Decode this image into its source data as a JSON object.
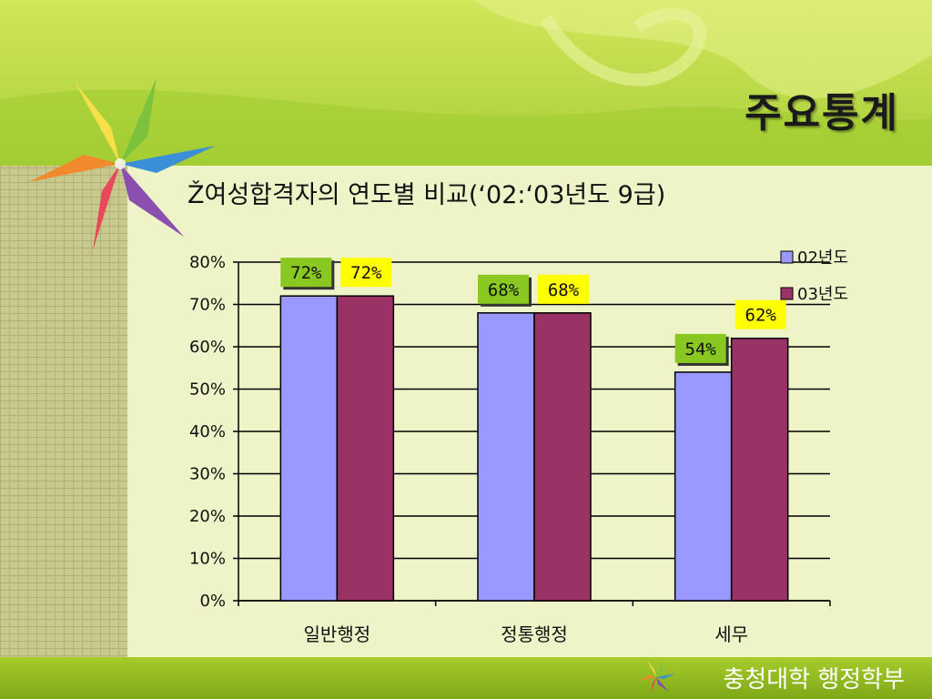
{
  "slide": {
    "title": "주요통계",
    "subtitle": "Ž여성합격자의 연도별 비교(‘02:‘03년도  9급)",
    "footer": "충청대학 행정학부",
    "colors": {
      "background_green": "#b8d94a",
      "panel": "#eef3c8",
      "footer_bar": "#8fb51e"
    }
  },
  "chart_data": {
    "type": "bar",
    "categories": [
      "일반행정",
      "정통행정",
      "세무"
    ],
    "series": [
      {
        "name": "02년도",
        "values": [
          72,
          68,
          54
        ],
        "color": "#9999ff",
        "label_bg": "#88c820"
      },
      {
        "name": "03년도",
        "values": [
          72,
          68,
          62
        ],
        "color": "#993366",
        "label_bg": "#ffff00"
      }
    ],
    "ylim": [
      0,
      80
    ],
    "yticks": [
      "0%",
      "10%",
      "20%",
      "30%",
      "40%",
      "50%",
      "60%",
      "70%",
      "80%"
    ],
    "data_labels": [
      [
        "72%",
        "68%",
        "54%"
      ],
      [
        "72%",
        "68%",
        "62%"
      ]
    ],
    "grid": true,
    "legend": "top-right"
  }
}
